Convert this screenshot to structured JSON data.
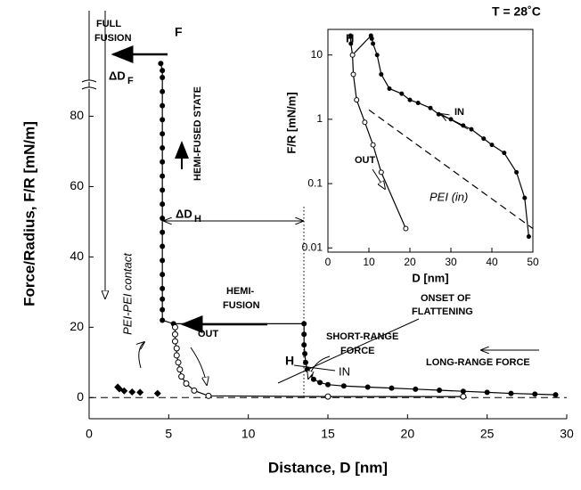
{
  "chart_data": [
    {
      "type": "scatter",
      "xlabel": "Distance, D [nm]",
      "ylabel": "Force/Radius, F/R [mN/m]",
      "xlim": [
        0,
        30
      ],
      "ylim": [
        -6,
        110
      ],
      "xticks": [
        0,
        5,
        10,
        15,
        20,
        25,
        30
      ],
      "yticks": [
        0,
        20,
        40,
        60,
        80
      ],
      "series": [
        {
          "name": "IN",
          "color": "#000000",
          "marker": "filled",
          "x": [
            29.3,
            28,
            26.5,
            25,
            23.5,
            22,
            20.5,
            19,
            17.5,
            16,
            15,
            14.5,
            14.1,
            13.9,
            13.7,
            13.6,
            13.55,
            13.5,
            13.5,
            13.5,
            5.3,
            4.6,
            4.6,
            4.6,
            4.6,
            4.6,
            4.6,
            4.6,
            4.6,
            4.6,
            4.6,
            4.6,
            4.6,
            4.6,
            4.6,
            4.6,
            4.6,
            4.6,
            4.6,
            4.6,
            4.6,
            4.5
          ],
          "values": [
            0.8,
            1,
            1.2,
            1.5,
            1.8,
            2.1,
            2.4,
            2.7,
            3,
            3.3,
            3.7,
            4.3,
            5.2,
            6.5,
            8,
            10,
            12.5,
            15,
            18,
            21,
            21,
            22,
            25,
            28,
            31,
            35,
            39,
            43,
            47,
            51,
            55,
            59,
            63,
            67,
            71,
            75,
            79,
            83,
            87,
            91,
            93,
            95
          ]
        },
        {
          "name": "OUT",
          "color": "#000000",
          "marker": "open",
          "x": [
            5.4,
            5.4,
            5.4,
            5.5,
            5.5,
            5.6,
            5.7,
            5.8,
            6.1,
            6.6,
            7.5,
            15,
            23.5
          ],
          "values": [
            20,
            18,
            16,
            14,
            12,
            10,
            8,
            6,
            4,
            2,
            0.5,
            0.3,
            0.3
          ]
        },
        {
          "name": "PEI-PEI contact",
          "color": "#000000",
          "marker": "diamond",
          "x": [
            1.8,
            1.9,
            2.2,
            2.7,
            3.2,
            4.3
          ],
          "values": [
            3,
            2.5,
            1.9,
            1.6,
            1.5,
            1.2
          ]
        }
      ],
      "annotations": [
        "FULL",
        "FUSION",
        "F",
        "ΔD",
        "F",
        "HEMI-FUSED STATE",
        "ΔD",
        "H",
        "HEMI-",
        "FUSION",
        "H",
        "OUT",
        "ONSET OF",
        "FLATTENING",
        "SHORT-RANGE",
        "FORCE",
        "IN",
        "LONG-RANGE FORCE",
        "T = 28˚C"
      ]
    },
    {
      "type": "scatter",
      "xlabel": "D [nm]",
      "ylabel": "F/R [mN/m]",
      "ylog": true,
      "xlim": [
        0,
        50
      ],
      "ylim": [
        0.0086,
        25
      ],
      "xticks": [
        0,
        10,
        20,
        30,
        40,
        50
      ],
      "yticks": [
        0.01,
        0.1,
        1,
        10
      ],
      "series": [
        {
          "name": "IN",
          "color": "#000000",
          "marker": "filled",
          "x": [
            49,
            48,
            46,
            43,
            40,
            38,
            35,
            33,
            30,
            27,
            25,
            22,
            20,
            18,
            15,
            13,
            12,
            11,
            10.7,
            10.5,
            6,
            5.6,
            5.5
          ],
          "values": [
            0.015,
            0.06,
            0.15,
            0.3,
            0.4,
            0.5,
            0.7,
            0.8,
            1,
            1.2,
            1.5,
            1.8,
            2,
            2.5,
            3,
            5,
            10,
            15,
            18,
            20,
            10,
            15,
            20
          ]
        },
        {
          "name": "OUT",
          "color": "#000000",
          "marker": "open",
          "x": [
            6,
            6.2,
            7,
            9,
            11,
            13,
            19
          ],
          "values": [
            10,
            5,
            2,
            0.9,
            0.4,
            0.15,
            0.02
          ]
        },
        {
          "name": "PEI (in)",
          "color": "#000000",
          "marker": "none",
          "dash": true,
          "x": [
            10,
            50
          ],
          "values": [
            1.4,
            0.02
          ]
        }
      ],
      "annotations": [
        "H",
        "IN",
        "OUT"
      ]
    }
  ]
}
